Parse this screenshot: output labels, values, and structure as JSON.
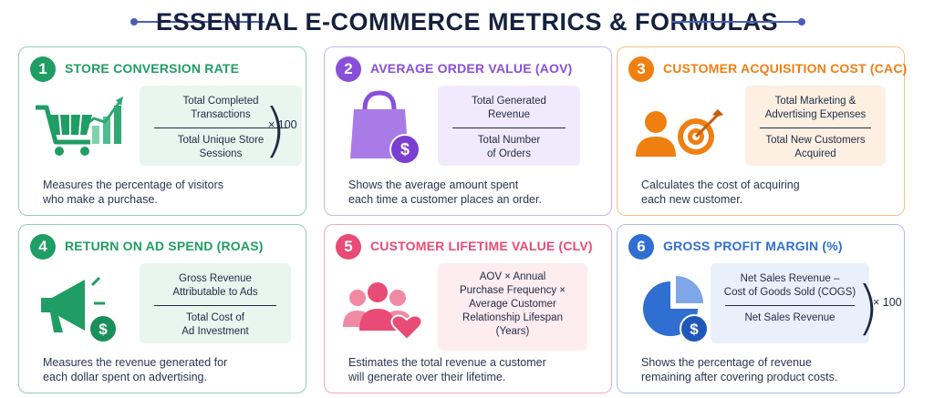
{
  "title": "ESSENTIAL E-COMMERCE METRICS & FORMULAS",
  "colors": {
    "green": "#1f9d64",
    "purple": "#8a4fd8",
    "orange": "#f07f12",
    "pink": "#e84b76",
    "blue": "#2f6fd2",
    "navy": "#16213e"
  },
  "cards": [
    {
      "number": "1",
      "heading": "STORE CONVERSION RATE",
      "icon": "shopping-cart-chart-icon",
      "numerator": [
        "Total Completed",
        "Transactions"
      ],
      "denominator": [
        "Total Unique Store",
        "Sessions"
      ],
      "multiplier": "× 100",
      "description": [
        "Measures the percentage of visitors",
        "who make a purchase."
      ]
    },
    {
      "number": "2",
      "heading": "AVERAGE ORDER VALUE (AOV)",
      "icon": "shopping-bag-dollar-icon",
      "numerator": [
        "Total Generated",
        "Revenue"
      ],
      "denominator": [
        "Total Number",
        "of Orders"
      ],
      "description": [
        "Shows the average amount spent",
        "each time a customer places an order."
      ]
    },
    {
      "number": "3",
      "heading": "CUSTOMER ACQUISITION COST (CAC)",
      "icon": "person-target-icon",
      "numerator": [
        "Total Marketing &",
        "Advertising Expenses"
      ],
      "denominator": [
        "Total New Customers",
        "Acquired"
      ],
      "description": [
        "Calculates the cost of acquiring",
        "each new customer."
      ]
    },
    {
      "number": "4",
      "heading": "RETURN ON AD SPEND (ROAS)",
      "icon": "megaphone-dollar-icon",
      "numerator": [
        "Gross Revenue",
        "Attributable to Ads"
      ],
      "denominator": [
        "Total Cost of",
        "Ad Investment"
      ],
      "description": [
        "Measures the revenue generated for",
        "each dollar spent on advertising."
      ]
    },
    {
      "number": "5",
      "heading": "CUSTOMER LIFETIME VALUE (CLV)",
      "icon": "customers-heart-icon",
      "formula": [
        "AOV × Annual",
        "Purchase Frequency ×",
        "Average Customer",
        "Relationship Lifespan",
        "(Years)"
      ],
      "description": [
        "Estimates the total revenue a customer",
        "will generate over their lifetime."
      ]
    },
    {
      "number": "6",
      "heading": "GROSS PROFIT MARGIN (%)",
      "icon": "pie-chart-dollar-icon",
      "numerator": [
        "Net Sales Revenue –",
        "Cost of Goods Sold (COGS)"
      ],
      "denominator": [
        "Net Sales Revenue"
      ],
      "multiplier": "× 100",
      "description": [
        "Shows the percentage of revenue",
        "remaining after covering product costs."
      ]
    }
  ]
}
